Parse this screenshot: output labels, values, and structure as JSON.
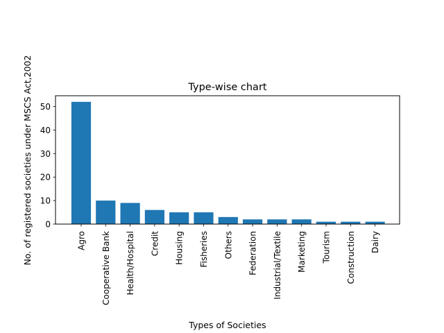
{
  "chart_data": {
    "type": "bar",
    "title": "Type-wise chart",
    "xlabel": "Types of Societies",
    "ylabel": "No. of registered societies under MSCS Act,2002",
    "categories": [
      "Agro",
      "Cooperative Bank",
      "Health/Hospital",
      "Credit",
      "Housing",
      "Fisheries",
      "Others",
      "Federation",
      "Industrial/Textile",
      "Marketing",
      "Tourism",
      "Construction",
      "Dairy"
    ],
    "values": [
      52,
      10,
      9,
      6,
      5,
      5,
      3,
      2,
      2,
      2,
      1,
      1,
      1
    ],
    "ylim": [
      0,
      54.6
    ],
    "yticks": [
      0,
      10,
      20,
      30,
      40,
      50
    ],
    "bar_color": "#1f77b4",
    "grid": false,
    "legend": "none"
  }
}
